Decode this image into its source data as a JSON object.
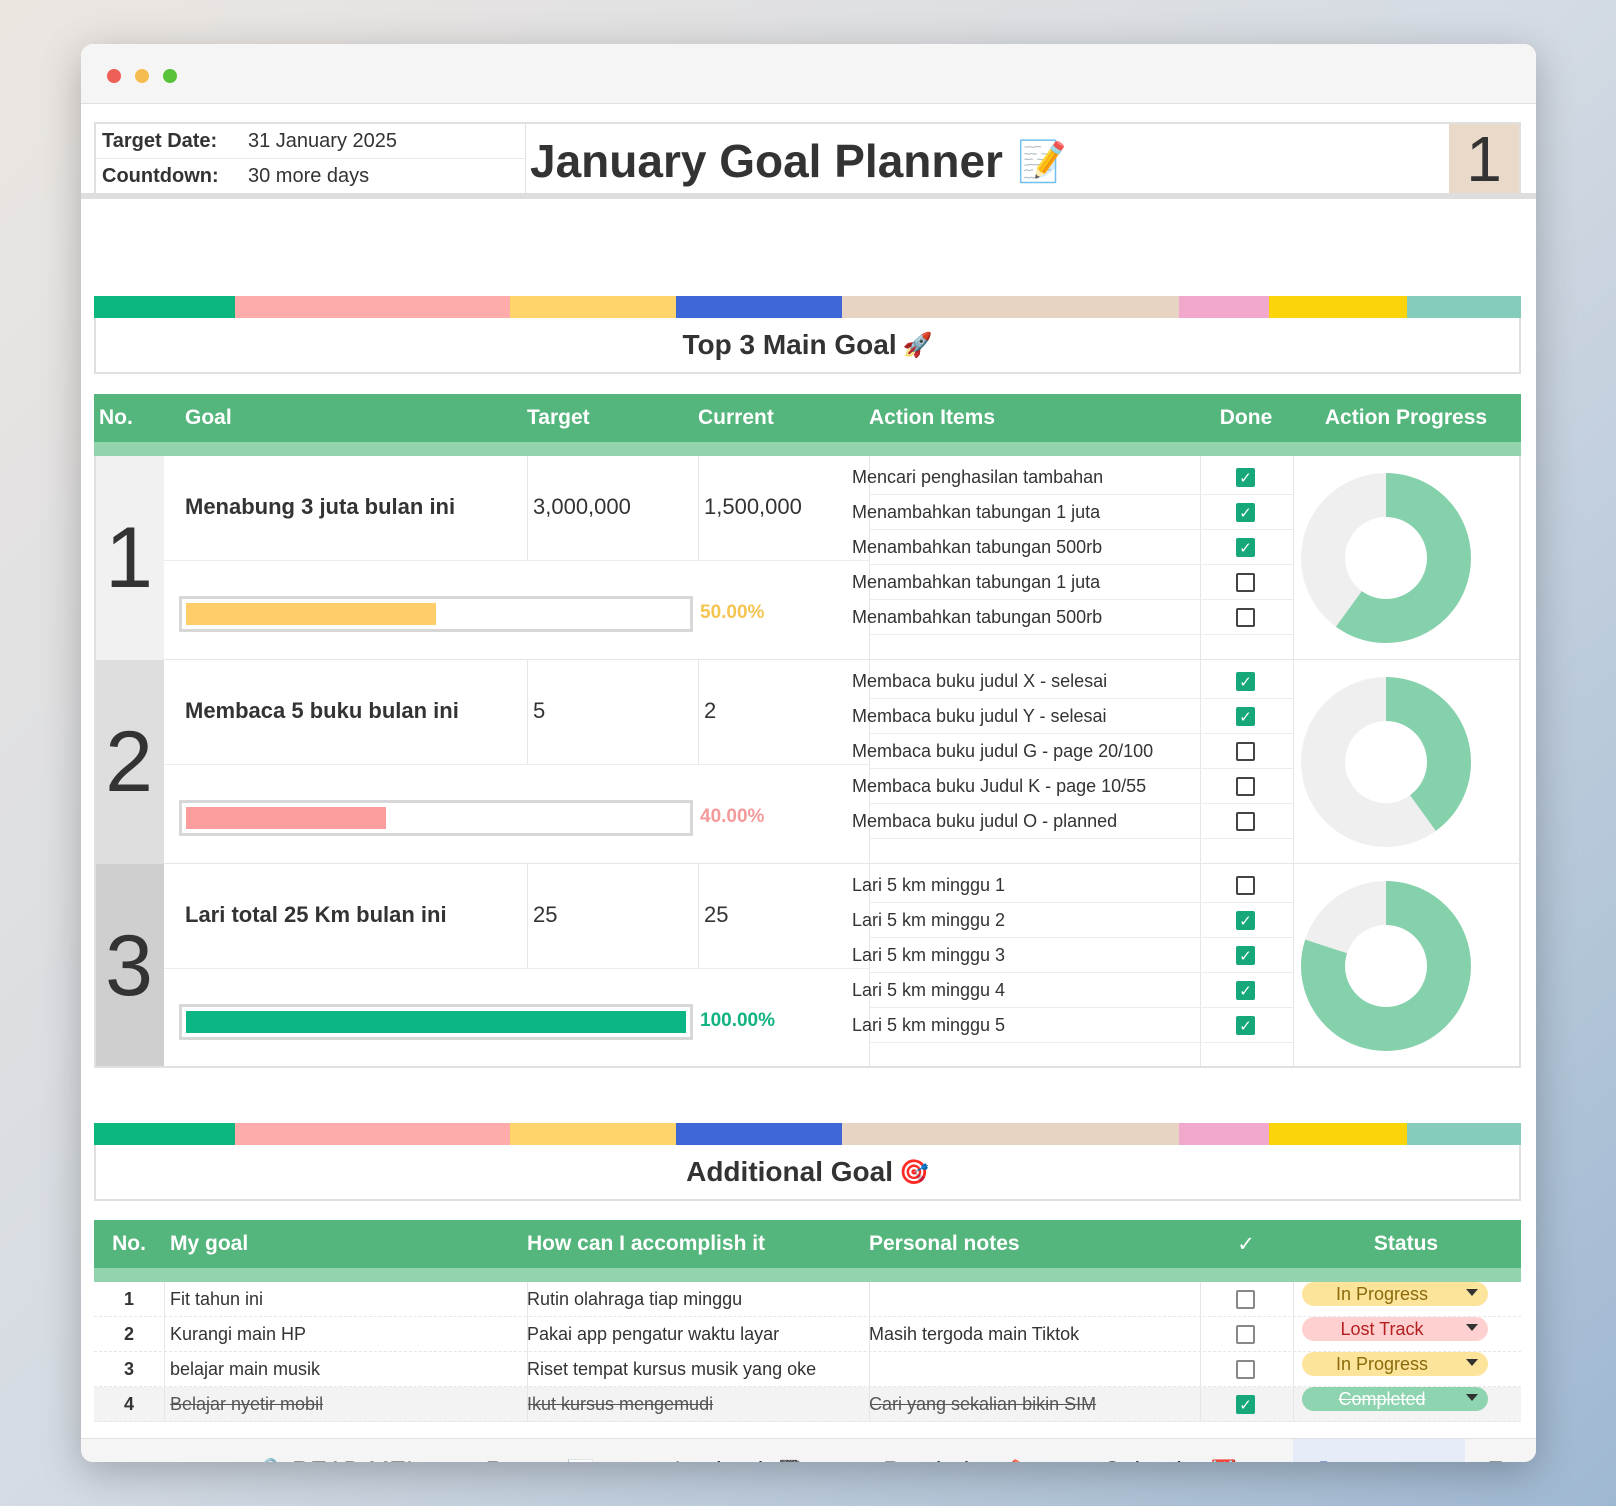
{
  "header": {
    "target_date_label": "Target Date:",
    "target_date_value": "31 January 2025",
    "countdown_label": "Countdown:",
    "countdown_value": "30 more days",
    "title": "January Goal Planner",
    "title_icon": "📝",
    "month_number": "1"
  },
  "colorbar": [
    "#0cb77f",
    "#fdabab",
    "#ffd46b",
    "#4067d8",
    "#e8d4c2",
    "#f2a8cd",
    "#fbd40a",
    "#86ccbc"
  ],
  "top_goals": {
    "title": "Top 3 Main Goal",
    "title_icon": "🚀",
    "columns": [
      "No.",
      "Goal",
      "Target",
      "Current",
      "Action Items",
      "Done",
      "Action Progress"
    ],
    "goals": [
      {
        "no": "1",
        "goal": "Menabung 3 juta bulan ini",
        "target": "3,000,000",
        "current": "1,500,000",
        "progress_text": "50.00%",
        "progress": 0.5,
        "bar_color": "#ffce6a",
        "pct_color": "#f5c451",
        "num_bg": "#f1f1f1",
        "action_done_fraction": 0.6,
        "actions": [
          {
            "text": "Mencari penghasilan tambahan",
            "done": true
          },
          {
            "text": "Menambahkan tabungan 1 juta",
            "done": true
          },
          {
            "text": "Menambahkan tabungan 500rb",
            "done": true
          },
          {
            "text": "Menambahkan tabungan 1 juta",
            "done": false
          },
          {
            "text": "Menambahkan tabungan 500rb",
            "done": false
          }
        ]
      },
      {
        "no": "2",
        "goal": "Membaca 5 buku bulan ini",
        "target": "5",
        "current": "2",
        "progress_text": "40.00%",
        "progress": 0.4,
        "bar_color": "#fb9d9d",
        "pct_color": "#f59a9a",
        "num_bg": "#dedede",
        "action_done_fraction": 0.4,
        "actions": [
          {
            "text": "Membaca buku judul X - selesai",
            "done": true
          },
          {
            "text": "Membaca buku judul Y - selesai",
            "done": true
          },
          {
            "text": "Membaca buku judul G - page 20/100",
            "done": false
          },
          {
            "text": "Membaca buku Judul K - page 10/55",
            "done": false
          },
          {
            "text": "Membaca buku judul O - planned",
            "done": false
          }
        ]
      },
      {
        "no": "3",
        "goal": "Lari total 25 Km bulan ini",
        "target": "25",
        "current": "25",
        "progress_text": "100.00%",
        "progress": 1.0,
        "bar_color": "#0cb584",
        "pct_color": "#12b383",
        "num_bg": "#cfcfcf",
        "action_done_fraction": 0.8,
        "actions": [
          {
            "text": "Lari 5 km minggu 1",
            "done": false
          },
          {
            "text": "Lari 5 km minggu 2",
            "done": true
          },
          {
            "text": "Lari 5 km minggu 3",
            "done": true
          },
          {
            "text": "Lari 5 km minggu 4",
            "done": true
          },
          {
            "text": "Lari 5 km minggu 5",
            "done": true
          }
        ]
      }
    ]
  },
  "additional_goals": {
    "title": "Additional Goal",
    "title_icon": "🎯",
    "columns": [
      "No.",
      "My goal",
      "How can I accomplish it",
      "Personal notes",
      "✓",
      "Status"
    ],
    "rows": [
      {
        "no": "1",
        "goal": "Fit tahun ini",
        "how": "Rutin olahraga tiap minggu",
        "notes": "",
        "done": false,
        "status": "In Progress",
        "status_bg": "#fde49b",
        "status_fg": "#8a6a0a"
      },
      {
        "no": "2",
        "goal": "Kurangi main HP",
        "how": "Pakai app pengatur waktu layar",
        "notes": "Masih tergoda main Tiktok",
        "done": false,
        "status": "Lost Track",
        "status_bg": "#ffd0d0",
        "status_fg": "#b32020"
      },
      {
        "no": "3",
        "goal": "belajar main musik",
        "how": "Riset tempat kursus musik yang oke",
        "notes": "",
        "done": false,
        "status": "In Progress",
        "status_bg": "#fde49b",
        "status_fg": "#8a6a0a"
      },
      {
        "no": "4",
        "goal": "Belajar nyetir mobil",
        "how": "Ikut kursus mengemudi",
        "notes": "Cari yang sekalian bikin SIM",
        "done": true,
        "status": "Completed",
        "status_bg": "#8fd4b0",
        "status_fg": "#ffffff"
      }
    ]
  },
  "tabs": {
    "add_icon": "plus-icon",
    "menu_icon": "menu-icon",
    "items": [
      {
        "label": "READ ME!",
        "icon": "🔒",
        "line": "#d84b6a"
      },
      {
        "label": "Report",
        "icon": "📊",
        "line": "#7ccdbc"
      },
      {
        "label": "Logbook",
        "icon": "📓",
        "line": "#b49ac9"
      },
      {
        "label": "Reminder",
        "icon": "📌",
        "line": "#7ccdbc"
      },
      {
        "label": "Calendar",
        "icon": "📆",
        "line": "#2f4858"
      },
      {
        "label": "January",
        "icon": "",
        "line": "#d8c3ae",
        "active": true
      },
      {
        "label": "F",
        "icon": "",
        "line": "#d8c3ae"
      }
    ]
  }
}
